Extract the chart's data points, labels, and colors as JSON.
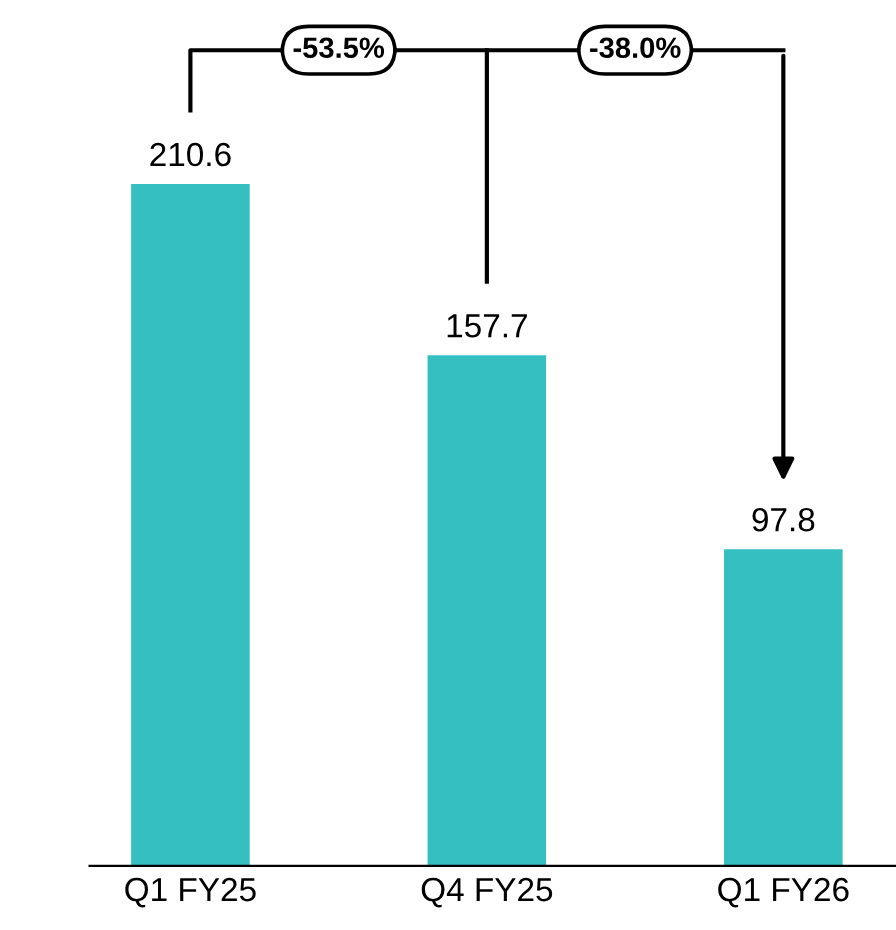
{
  "chart_data": {
    "type": "bar",
    "categories": [
      "Q1 FY25",
      "Q4 FY25",
      "Q1 FY26"
    ],
    "values": [
      210.6,
      157.7,
      97.8
    ],
    "color": "#36bfc0",
    "data_labels": true,
    "annotations": [
      "-53.5%",
      "-38.0%"
    ]
  }
}
